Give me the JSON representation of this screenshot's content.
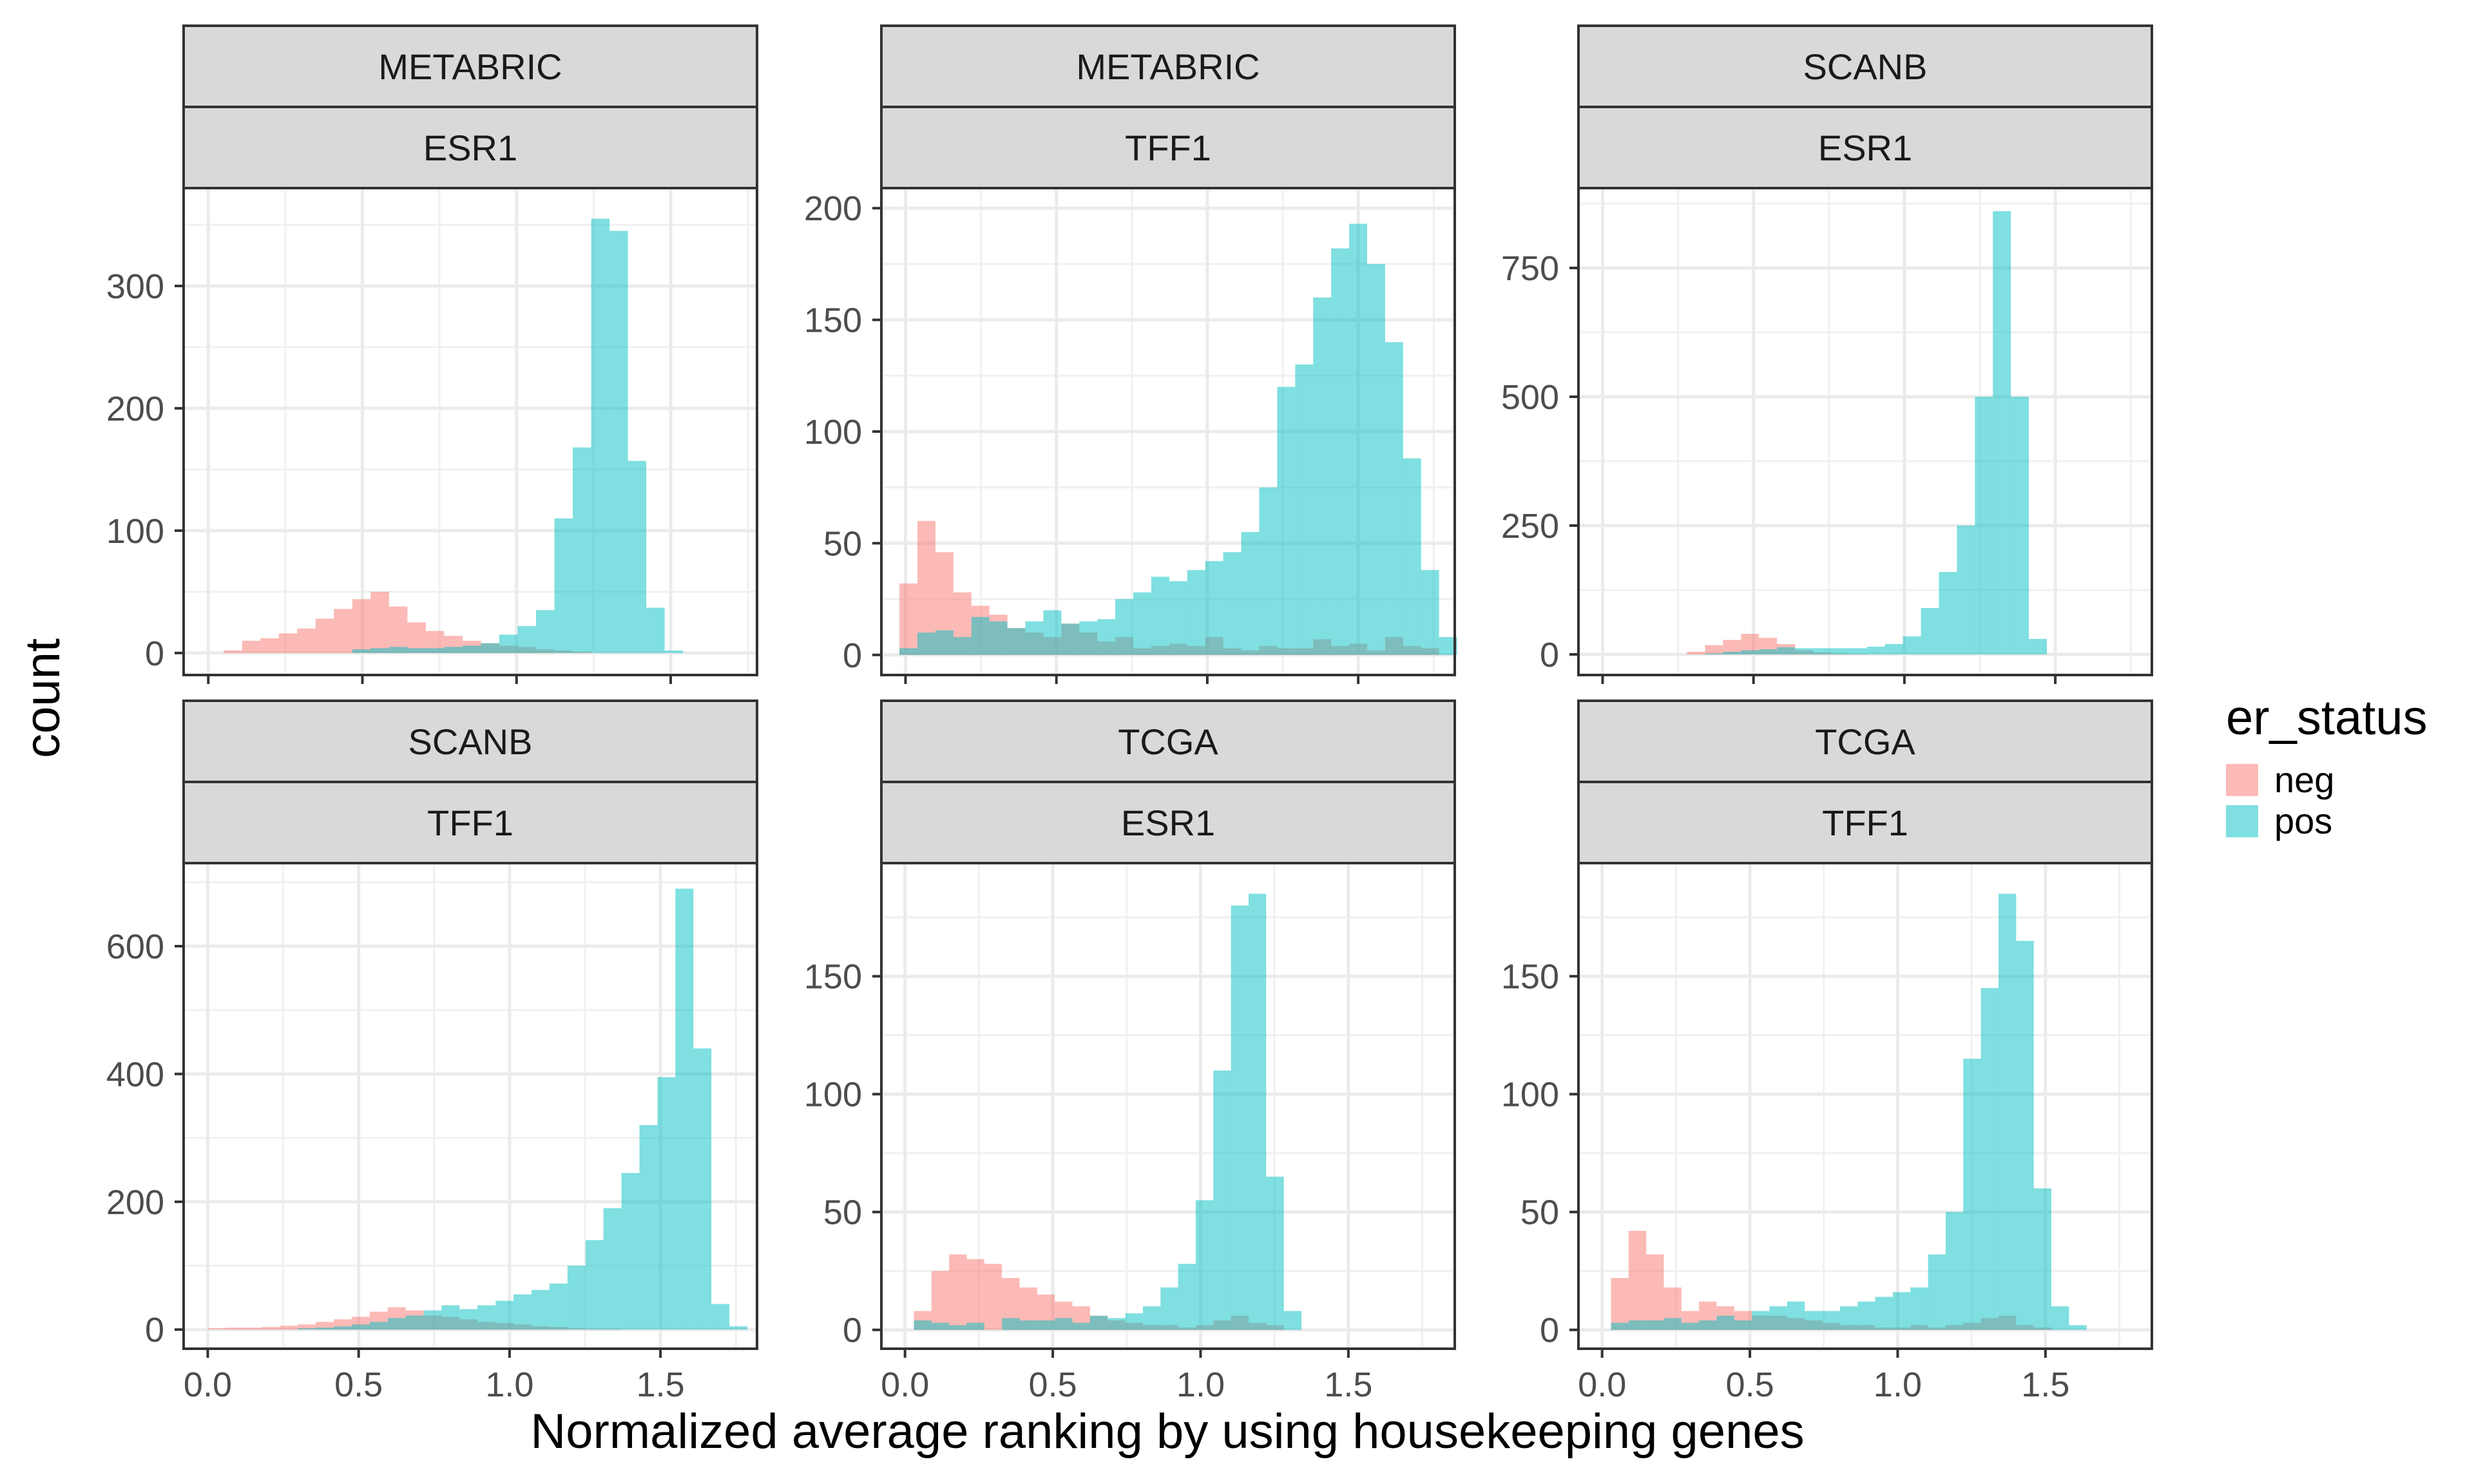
{
  "figure": {
    "xlabel": "Normalized average ranking by using housekeeping genes",
    "ylabel": "count"
  },
  "legend": {
    "title": "er_status",
    "placement": "right",
    "items": [
      {
        "label": "neg",
        "color": "#F8766D"
      },
      {
        "label": "pos",
        "color": "#00BFC4"
      }
    ]
  },
  "chart_data": [
    {
      "type": "bar",
      "facet": [
        "METABRIC",
        "ESR1"
      ],
      "x_ticks": [
        0.0,
        0.5,
        1.0,
        1.5
      ],
      "x_tick_labels": [
        "0.0",
        "0.5",
        "1.0",
        "1.5"
      ],
      "y_ticks": [
        0,
        100,
        200,
        300
      ],
      "y_tick_labels": [
        "0",
        "100",
        "200",
        "300"
      ],
      "xlim": [
        -0.08,
        1.78
      ],
      "ylim": [
        -18,
        380
      ],
      "bin_start": 0.05,
      "bin_width": 0.0596,
      "series": [
        {
          "name": "neg",
          "values": [
            2,
            10,
            12,
            16,
            20,
            28,
            36,
            44,
            50,
            38,
            25,
            18,
            14,
            10,
            8,
            6,
            5,
            3,
            2,
            1,
            0,
            0,
            0,
            0,
            0
          ]
        },
        {
          "name": "pos",
          "values": [
            0,
            0,
            0,
            0,
            0,
            0,
            0,
            3,
            4,
            5,
            4,
            4,
            5,
            6,
            8,
            15,
            22,
            35,
            110,
            168,
            355,
            345,
            157,
            37,
            2
          ]
        }
      ]
    },
    {
      "type": "bar",
      "facet": [
        "METABRIC",
        "TFF1"
      ],
      "x_ticks": [
        0.0,
        0.5,
        1.0,
        1.5
      ],
      "x_tick_labels": [
        "0.0",
        "0.5",
        "1.0",
        "1.5"
      ],
      "y_ticks": [
        0,
        50,
        100,
        150,
        200
      ],
      "y_tick_labels": [
        "0",
        "50",
        "100",
        "150",
        "200"
      ],
      "xlim": [
        -0.08,
        1.82
      ],
      "ylim": [
        -9,
        209
      ],
      "bin_start": -0.02,
      "bin_width": 0.0596,
      "series": [
        {
          "name": "neg",
          "values": [
            32,
            60,
            46,
            28,
            22,
            18,
            12,
            10,
            8,
            14,
            10,
            6,
            8,
            3,
            4,
            5,
            4,
            8,
            3,
            2,
            4,
            3,
            3,
            7,
            4,
            5,
            2,
            8,
            4,
            3
          ]
        },
        {
          "name": "pos",
          "values": [
            3,
            10,
            11,
            8,
            17,
            15,
            12,
            15,
            20,
            14,
            15,
            16,
            25,
            28,
            35,
            33,
            38,
            42,
            46,
            55,
            75,
            120,
            130,
            160,
            182,
            193,
            175,
            140,
            88,
            38,
            8
          ]
        }
      ]
    },
    {
      "type": "bar",
      "facet": [
        "SCANB",
        "ESR1"
      ],
      "x_ticks": [
        0.0,
        0.5,
        1.0,
        1.5
      ],
      "x_tick_labels": [
        "0.0",
        "0.5",
        "1.0",
        "1.5"
      ],
      "y_ticks": [
        0,
        250,
        500,
        750
      ],
      "y_tick_labels": [
        "0",
        "250",
        "500",
        "750"
      ],
      "xlim": [
        -0.08,
        1.82
      ],
      "ylim": [
        -40,
        905
      ],
      "bin_start": 0.28,
      "bin_width": 0.0596,
      "series": [
        {
          "name": "neg",
          "values": [
            5,
            18,
            28,
            40,
            32,
            20,
            8,
            4,
            2,
            1,
            0,
            0,
            0,
            0,
            0,
            0,
            0,
            0,
            0
          ]
        },
        {
          "name": "pos",
          "values": [
            0,
            2,
            5,
            8,
            10,
            14,
            12,
            12,
            12,
            12,
            15,
            20,
            35,
            90,
            160,
            250,
            500,
            860,
            500,
            30
          ]
        }
      ]
    },
    {
      "type": "bar",
      "facet": [
        "SCANB",
        "TFF1"
      ],
      "x_ticks": [
        0.0,
        0.5,
        1.0,
        1.5
      ],
      "x_tick_labels": [
        "0.0",
        "0.5",
        "1.0",
        "1.5"
      ],
      "y_ticks": [
        0,
        200,
        400,
        600
      ],
      "y_tick_labels": [
        "0",
        "200",
        "400",
        "600"
      ],
      "xlim": [
        -0.08,
        1.82
      ],
      "ylim": [
        -30,
        730
      ],
      "bin_start": 0.0,
      "bin_width": 0.0596,
      "series": [
        {
          "name": "neg",
          "values": [
            2,
            3,
            3,
            4,
            6,
            8,
            12,
            16,
            20,
            28,
            35,
            30,
            22,
            20,
            16,
            12,
            10,
            8,
            5,
            4,
            2,
            1,
            1,
            0
          ]
        },
        {
          "name": "pos",
          "values": [
            0,
            0,
            0,
            0,
            0,
            2,
            3,
            5,
            8,
            12,
            18,
            22,
            30,
            38,
            32,
            38,
            45,
            55,
            62,
            72,
            100,
            140,
            190,
            245,
            320,
            395,
            690,
            440,
            40,
            5
          ]
        }
      ]
    },
    {
      "type": "bar",
      "facet": [
        "TCGA",
        "ESR1"
      ],
      "x_ticks": [
        0.0,
        0.5,
        1.0,
        1.5
      ],
      "x_tick_labels": [
        "0.0",
        "0.5",
        "1.0",
        "1.5"
      ],
      "y_ticks": [
        0,
        50,
        100,
        150
      ],
      "y_tick_labels": [
        "0",
        "50",
        "100",
        "150"
      ],
      "xlim": [
        -0.08,
        1.86
      ],
      "ylim": [
        -8,
        198
      ],
      "bin_start": 0.03,
      "bin_width": 0.0596,
      "series": [
        {
          "name": "neg",
          "values": [
            8,
            25,
            32,
            30,
            28,
            22,
            18,
            15,
            12,
            10,
            6,
            4,
            3,
            2,
            2,
            1,
            2,
            4,
            6,
            3,
            2,
            0
          ]
        },
        {
          "name": "pos",
          "values": [
            4,
            3,
            2,
            3,
            0,
            5,
            4,
            4,
            5,
            3,
            6,
            5,
            7,
            10,
            18,
            28,
            55,
            110,
            180,
            185,
            65,
            8
          ]
        }
      ]
    },
    {
      "type": "bar",
      "facet": [
        "TCGA",
        "TFF1"
      ],
      "x_ticks": [
        0.0,
        0.5,
        1.0,
        1.5
      ],
      "x_tick_labels": [
        "0.0",
        "0.5",
        "1.0",
        "1.5"
      ],
      "y_ticks": [
        0,
        50,
        100,
        150
      ],
      "y_tick_labels": [
        "0",
        "50",
        "100",
        "150"
      ],
      "xlim": [
        -0.08,
        1.86
      ],
      "ylim": [
        -8,
        198
      ],
      "bin_start": 0.03,
      "bin_width": 0.0596,
      "series": [
        {
          "name": "neg",
          "values": [
            22,
            42,
            32,
            18,
            8,
            12,
            10,
            8,
            6,
            6,
            5,
            4,
            3,
            2,
            2,
            1,
            1,
            2,
            1,
            2,
            3,
            5,
            6,
            2,
            1,
            0
          ]
        },
        {
          "name": "pos",
          "values": [
            3,
            4,
            4,
            5,
            3,
            4,
            6,
            4,
            8,
            10,
            12,
            8,
            8,
            10,
            12,
            14,
            16,
            18,
            32,
            50,
            115,
            145,
            185,
            165,
            60,
            10,
            2
          ]
        }
      ]
    }
  ]
}
